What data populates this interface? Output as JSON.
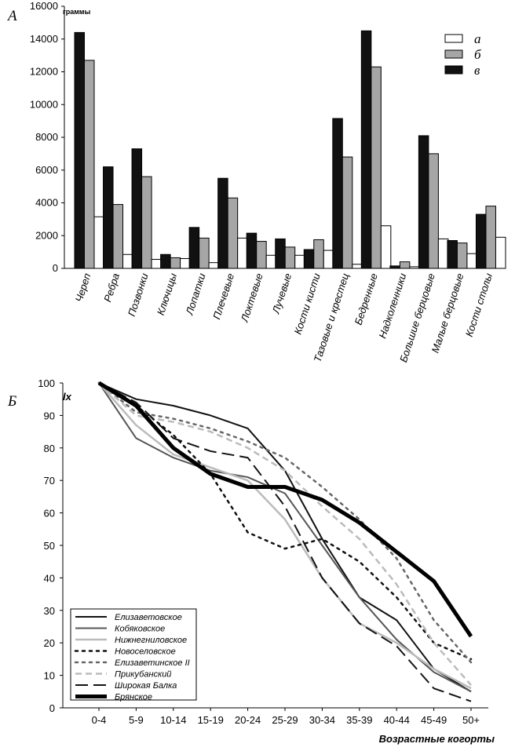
{
  "chart_data": [
    {
      "type": "bar",
      "panel_label": "А",
      "ylabel": "граммы",
      "ylim": [
        0,
        16000
      ],
      "yticks": [
        "0",
        "2000",
        "4000",
        "6000",
        "8000",
        "10000",
        "12000",
        "14000",
        "16000"
      ],
      "categories": [
        "Череп",
        "Ребра",
        "Позвонки",
        "Ключицы",
        "Лопатки",
        "Плечевые",
        "Локтевые",
        "Лучевые",
        "Кости кисти",
        "Тазовые и крестец",
        "Бедренные",
        "Надколенники",
        "Большие берцовые",
        "Малые берцовые",
        "Кости столы"
      ],
      "series": [
        {
          "name": "в",
          "color": "#111111",
          "values": [
            14400,
            6200,
            7300,
            850,
            2500,
            5500,
            2150,
            1800,
            1150,
            9150,
            14500,
            150,
            8100,
            1700,
            3300
          ]
        },
        {
          "name": "б",
          "color": "#a6a6a6",
          "values": [
            12700,
            3900,
            5600,
            650,
            1850,
            4300,
            1650,
            1300,
            1750,
            6800,
            12300,
            400,
            7000,
            1550,
            3800
          ]
        },
        {
          "name": "а",
          "color": "#ffffff",
          "values": [
            3150,
            850,
            550,
            600,
            350,
            1850,
            800,
            800,
            1100,
            250,
            2600,
            100,
            1800,
            900,
            1900
          ]
        }
      ],
      "legend": [
        "а",
        "б",
        "в"
      ],
      "legend_position": "top-right"
    },
    {
      "type": "line",
      "panel_label": "Б",
      "ylabel": "lx",
      "xlabel": "Возрастные когорты",
      "ylim": [
        0,
        100
      ],
      "yticks": [
        "0",
        "10",
        "20",
        "30",
        "40",
        "50",
        "60",
        "70",
        "80",
        "90",
        "100"
      ],
      "categories": [
        "0-4",
        "5-9",
        "10-14",
        "15-19",
        "20-24",
        "25-29",
        "30-34",
        "35-39",
        "40-44",
        "45-49",
        "50+"
      ],
      "series": [
        {
          "name": "Елизаветовское",
          "color": "#111111",
          "dash": "solid",
          "width": 2,
          "values": [
            100,
            95,
            93,
            90,
            86,
            73,
            52,
            34,
            27,
            12,
            5
          ]
        },
        {
          "name": "Кобяковское",
          "color": "#555555",
          "dash": "solid",
          "width": 2,
          "values": [
            100,
            83,
            77,
            73,
            71,
            66,
            50,
            34,
            21,
            11,
            5
          ]
        },
        {
          "name": "Нижнегниловское",
          "color": "#bbbbbb",
          "dash": "solid",
          "width": 2.5,
          "values": [
            100,
            87,
            78,
            74,
            70,
            58,
            40,
            26,
            20,
            12,
            6
          ]
        },
        {
          "name": "Новоселовское",
          "color": "#111111",
          "dash": "dot",
          "width": 2.5,
          "values": [
            100,
            93,
            84,
            72,
            54,
            49,
            52,
            45,
            34,
            20,
            15
          ]
        },
        {
          "name": "Елизаветинское II",
          "color": "#666666",
          "dash": "dot",
          "width": 2.5,
          "values": [
            100,
            91,
            89,
            86,
            82,
            77,
            68,
            58,
            46,
            27,
            14
          ]
        },
        {
          "name": "Прикубанский",
          "color": "#bbbbbb",
          "dash": "dash",
          "width": 2.5,
          "values": [
            100,
            90,
            88,
            85,
            80,
            73,
            62,
            52,
            38,
            20,
            7
          ]
        },
        {
          "name": "Широкая Балка",
          "color": "#111111",
          "dash": "longdash",
          "width": 2,
          "values": [
            100,
            94,
            83,
            79,
            77,
            62,
            40,
            26,
            19,
            6,
            2
          ]
        },
        {
          "name": "Брянское",
          "color": "#000000",
          "dash": "solid",
          "width": 5,
          "values": [
            100,
            93,
            80,
            72,
            68,
            68,
            64,
            57,
            48,
            39,
            22
          ]
        }
      ],
      "legend_position": "bottom-left"
    }
  ]
}
